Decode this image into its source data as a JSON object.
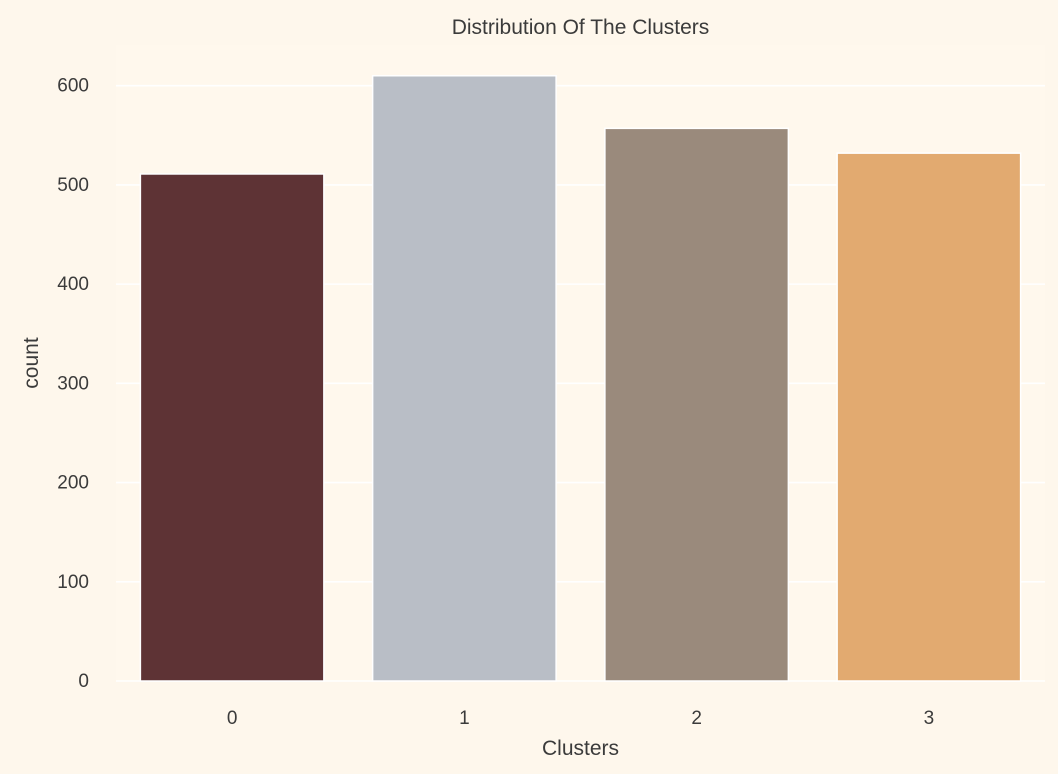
{
  "chart_data": {
    "type": "bar",
    "title": "Distribution Of The Clusters",
    "xlabel": "Clusters",
    "ylabel": "count",
    "categories": [
      "0",
      "1",
      "2",
      "3"
    ],
    "values": [
      511,
      610,
      557,
      532
    ],
    "ylim": [
      0,
      641
    ],
    "yticks": [
      0,
      100,
      200,
      300,
      400,
      500,
      600
    ],
    "colors": [
      "#5e3335",
      "#b9bec6",
      "#9a8a7c",
      "#e2aa70"
    ],
    "grid": true
  },
  "style": {
    "page_bg": "#fef7ec",
    "plot_bg": "#fff8ed",
    "grid_color": "#ffffff",
    "text_color": "#3b3b3b"
  }
}
